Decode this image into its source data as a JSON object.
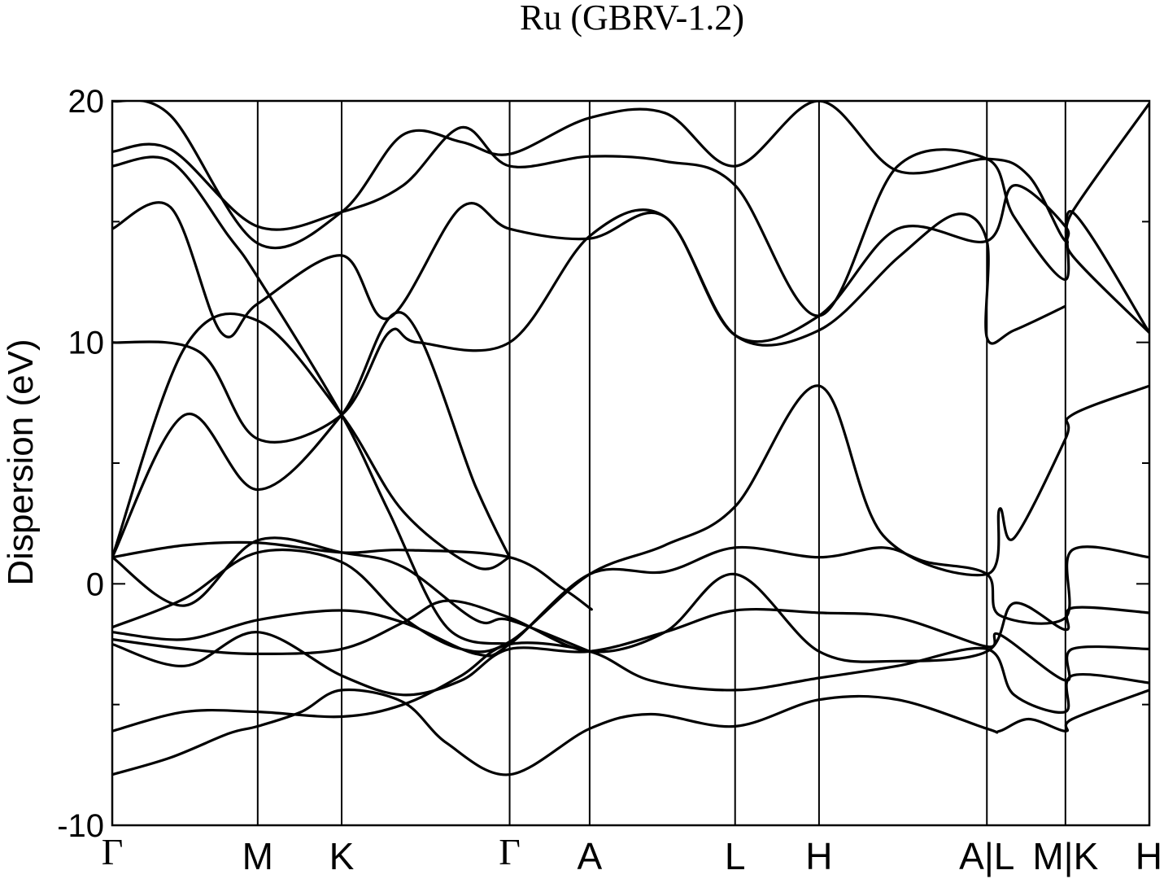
{
  "chart_data": {
    "type": "line",
    "title": "Ru (GBRV-1.2)",
    "ylabel": "Dispersion (eV)",
    "xlabel": "",
    "ylim": [
      -10,
      20
    ],
    "yticks": [
      -10,
      0,
      10,
      20
    ],
    "y_minor_ticks": [
      -5,
      5,
      15
    ],
    "grid": false,
    "kpath": {
      "labels": [
        "Γ",
        "M",
        "K",
        "Γ",
        "A",
        "L",
        "H",
        "A|L",
        "M|K",
        "H"
      ],
      "positions": [
        0,
        1.0,
        1.577,
        2.732,
        3.282,
        4.282,
        4.859,
        6.013,
        6.553,
        7.13
      ]
    },
    "series": [
      {
        "points": [
          [
            0,
            -7.9
          ],
          [
            0.4,
            -7.2
          ],
          [
            0.8,
            -6.2
          ],
          [
            1.0,
            -5.9
          ],
          [
            1.3,
            -5.3
          ],
          [
            1.577,
            -4.4
          ],
          [
            2.0,
            -4.9
          ],
          [
            2.3,
            -6.6
          ],
          [
            2.732,
            -7.9
          ],
          [
            3.282,
            -6.0
          ],
          [
            3.7,
            -5.4
          ],
          [
            4.282,
            -5.9
          ],
          [
            4.859,
            -4.8
          ],
          [
            5.4,
            -4.8
          ],
          [
            6.013,
            -6.0
          ],
          [
            6.1,
            -6.1
          ],
          [
            6.3,
            -5.6
          ],
          [
            6.553,
            -6.1
          ],
          [
            6.6,
            -5.6
          ],
          [
            7.13,
            -4.4
          ]
        ]
      },
      {
        "points": [
          [
            0,
            -6.1
          ],
          [
            0.5,
            -5.3
          ],
          [
            1.0,
            -5.3
          ],
          [
            1.577,
            -5.5
          ],
          [
            2.0,
            -5.0
          ],
          [
            2.4,
            -3.8
          ],
          [
            2.732,
            -2.5
          ],
          [
            3.282,
            -2.8
          ],
          [
            3.7,
            -4.0
          ],
          [
            4.282,
            -4.4
          ],
          [
            4.859,
            -3.9
          ],
          [
            5.4,
            -3.4
          ],
          [
            6.013,
            -2.7
          ],
          [
            6.2,
            -4.6
          ],
          [
            6.553,
            -5.3
          ],
          [
            6.6,
            -3.8
          ],
          [
            7.13,
            -4.1
          ]
        ]
      },
      {
        "points": [
          [
            0,
            -2.5
          ],
          [
            0.5,
            -3.4
          ],
          [
            1.0,
            -2.0
          ],
          [
            1.577,
            -3.8
          ],
          [
            2.0,
            -4.6
          ],
          [
            2.4,
            -4.0
          ],
          [
            2.732,
            -2.7
          ],
          [
            3.282,
            -2.8
          ],
          [
            3.8,
            -2.0
          ],
          [
            4.282,
            -1.1
          ],
          [
            4.859,
            -1.2
          ],
          [
            5.4,
            -1.4
          ],
          [
            6.013,
            -2.6
          ],
          [
            6.1,
            -2.1
          ],
          [
            6.553,
            -4.0
          ],
          [
            6.6,
            -2.7
          ],
          [
            7.13,
            -2.7
          ]
        ]
      },
      {
        "points": [
          [
            0,
            -2.3
          ],
          [
            0.5,
            -2.7
          ],
          [
            1.0,
            -2.9
          ],
          [
            1.577,
            -2.7
          ],
          [
            2.0,
            -1.6
          ],
          [
            2.3,
            -0.7
          ],
          [
            2.732,
            -1.4
          ],
          [
            3.282,
            -2.8
          ],
          [
            3.8,
            -2.0
          ],
          [
            4.282,
            0.4
          ],
          [
            4.859,
            -2.8
          ],
          [
            5.4,
            -3.2
          ],
          [
            6.013,
            -2.8
          ],
          [
            6.2,
            -0.8
          ],
          [
            6.553,
            -1.9
          ],
          [
            6.6,
            -1.0
          ],
          [
            7.13,
            -1.2
          ]
        ]
      },
      {
        "points": [
          [
            0,
            -2.0
          ],
          [
            0.5,
            -2.3
          ],
          [
            1.0,
            -1.5
          ],
          [
            1.577,
            -1.1
          ],
          [
            2.0,
            -1.6
          ],
          [
            2.5,
            -2.9
          ],
          [
            2.732,
            -2.5
          ],
          [
            3.282,
            0.4
          ],
          [
            3.8,
            0.5
          ],
          [
            4.282,
            1.5
          ],
          [
            4.859,
            1.1
          ],
          [
            5.3,
            1.5
          ],
          [
            5.6,
            0.9
          ],
          [
            6.013,
            0.4
          ],
          [
            6.1,
            -1.3
          ],
          [
            6.553,
            -1.4
          ],
          [
            6.6,
            1.4
          ],
          [
            7.13,
            1.1
          ]
        ]
      },
      {
        "points": [
          [
            0,
            -1.8
          ],
          [
            0.5,
            -0.6
          ],
          [
            1.0,
            1.3
          ],
          [
            1.577,
            0.9
          ],
          [
            2.0,
            -1.4
          ],
          [
            2.4,
            -2.7
          ],
          [
            2.732,
            -2.4
          ],
          [
            3.282,
            0.4
          ],
          [
            3.8,
            1.6
          ],
          [
            4.282,
            3.2
          ],
          [
            4.859,
            8.2
          ],
          [
            5.3,
            2.0
          ],
          [
            6.013,
            0.4
          ],
          [
            6.1,
            3.1
          ],
          [
            6.2,
            1.9
          ],
          [
            6.553,
            6.0
          ],
          [
            6.6,
            7.0
          ],
          [
            7.13,
            8.2
          ]
        ]
      },
      {
        "points": [
          [
            0,
            1.1
          ],
          [
            0.5,
            1.6
          ],
          [
            1.0,
            1.7
          ],
          [
            1.577,
            1.3
          ],
          [
            2.0,
            1.4
          ],
          [
            2.732,
            1.1
          ],
          [
            3.1,
            -0.2
          ],
          [
            3.282,
            -1.0
          ],
          [
            3.282,
            -1.0
          ]
        ]
      },
      {
        "points": [
          [
            0,
            1.1
          ],
          [
            0.5,
            -0.9
          ],
          [
            1.0,
            1.8
          ],
          [
            1.577,
            1.3
          ],
          [
            2.0,
            0.7
          ],
          [
            2.5,
            -1.5
          ],
          [
            2.732,
            -1.5
          ],
          [
            3.282,
            -2.8
          ]
        ]
      },
      {
        "points": [
          [
            0,
            1.1
          ],
          [
            0.5,
            9.8
          ],
          [
            1.0,
            10.9
          ],
          [
            1.577,
            7.0
          ],
          [
            2.0,
            3.0
          ],
          [
            2.5,
            0.7
          ],
          [
            2.732,
            1.1
          ]
        ]
      },
      {
        "points": [
          [
            0,
            1.1
          ],
          [
            0.5,
            7.0
          ],
          [
            1.0,
            3.9
          ],
          [
            1.577,
            7.0
          ],
          [
            2.0,
            11.2
          ],
          [
            2.5,
            4.0
          ],
          [
            2.732,
            1.1
          ]
        ]
      },
      {
        "points": [
          [
            0,
            10.0
          ],
          [
            0.6,
            9.6
          ],
          [
            1.0,
            6.0
          ],
          [
            1.577,
            7.0
          ],
          [
            1.9,
            10.4
          ],
          [
            2.1,
            10.0
          ],
          [
            2.732,
            10.0
          ],
          [
            3.282,
            14.4
          ],
          [
            3.8,
            15.2
          ],
          [
            4.282,
            10.3
          ],
          [
            4.859,
            10.5
          ],
          [
            5.4,
            13.5
          ],
          [
            5.8,
            15.3
          ],
          [
            6.013,
            14.2
          ],
          [
            6.013,
            10.2
          ],
          [
            6.2,
            10.5
          ],
          [
            6.553,
            11.5
          ]
        ]
      },
      {
        "points": [
          [
            0,
            14.7
          ],
          [
            0.4,
            15.6
          ],
          [
            0.75,
            10.4
          ],
          [
            1.0,
            11.6
          ],
          [
            1.577,
            13.6
          ],
          [
            1.9,
            11.0
          ],
          [
            2.4,
            15.6
          ],
          [
            2.732,
            14.7
          ],
          [
            3.282,
            14.3
          ],
          [
            3.8,
            15.2
          ],
          [
            4.282,
            10.3
          ],
          [
            4.859,
            11.1
          ],
          [
            5.4,
            14.7
          ],
          [
            6.013,
            14.2
          ],
          [
            6.2,
            16.5
          ],
          [
            6.553,
            14.8
          ],
          [
            6.6,
            13.6
          ],
          [
            7.13,
            10.4
          ]
        ]
      },
      {
        "points": [
          [
            0,
            17.3
          ],
          [
            0.4,
            17.5
          ],
          [
            0.8,
            14.4
          ],
          [
            1.0,
            12.7
          ],
          [
            1.577,
            7.0
          ],
          [
            1.9,
            3.0
          ],
          [
            2.3,
            -1.8
          ],
          [
            2.732,
            -2.5
          ]
        ]
      },
      {
        "points": [
          [
            0,
            17.9
          ],
          [
            0.4,
            18.0
          ],
          [
            1.0,
            14.8
          ],
          [
            1.577,
            15.4
          ],
          [
            2.0,
            16.5
          ],
          [
            2.4,
            18.9
          ],
          [
            2.732,
            17.3
          ],
          [
            3.282,
            17.7
          ],
          [
            3.8,
            17.5
          ],
          [
            4.282,
            16.5
          ],
          [
            4.859,
            11.1
          ],
          [
            5.4,
            17.3
          ],
          [
            6.013,
            17.6
          ],
          [
            6.2,
            15.2
          ],
          [
            6.553,
            12.6
          ],
          [
            6.6,
            15.4
          ],
          [
            7.13,
            10.4
          ]
        ]
      },
      {
        "points": [
          [
            0,
            20
          ],
          [
            0.4,
            19.4
          ],
          [
            1.0,
            14.1
          ],
          [
            1.577,
            15.4
          ],
          [
            2.0,
            18.6
          ],
          [
            2.4,
            18.3
          ],
          [
            2.732,
            17.8
          ],
          [
            3.282,
            19.3
          ],
          [
            3.8,
            19.5
          ],
          [
            4.282,
            17.3
          ],
          [
            4.859,
            20
          ],
          [
            5.4,
            17.1
          ],
          [
            6.013,
            17.6
          ],
          [
            6.3,
            16.9
          ],
          [
            6.553,
            14.2
          ],
          [
            6.6,
            15.4
          ],
          [
            7.13,
            19.9
          ]
        ]
      }
    ]
  }
}
